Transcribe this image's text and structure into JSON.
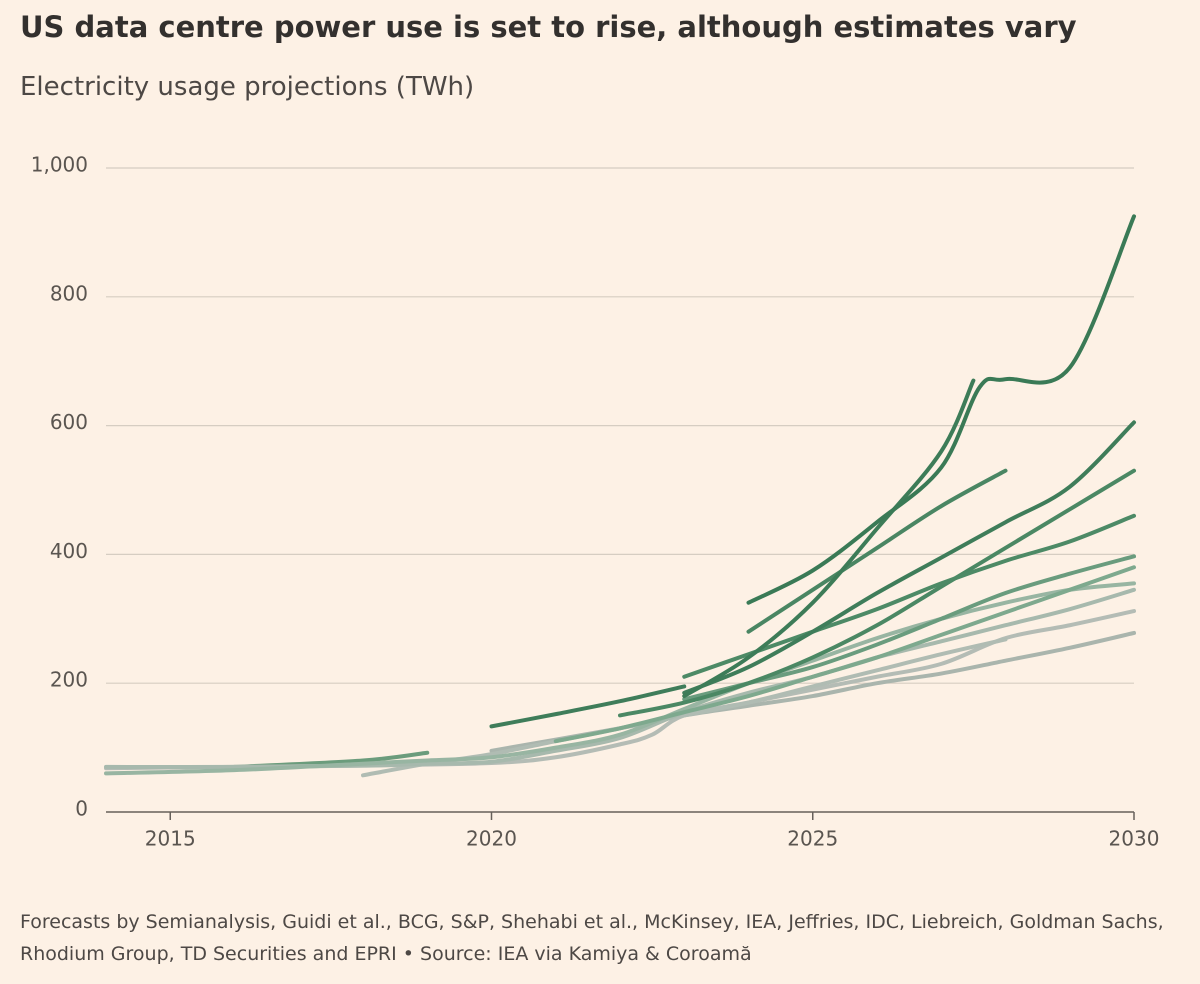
{
  "chart_data": {
    "type": "line",
    "title": "US data centre power use is set to rise, although estimates vary",
    "subtitle": "Electricity usage projections (TWh)",
    "footnote": "Forecasts by Semianalysis, Guidi et al., BCG, S&P, Shehabi et al., McKinsey, IEA, Jeffries, IDC, Liebreich, Goldman Sachs, Rhodium Group, TD Securities and EPRI • Source: IEA via Kamiya & Coroamă",
    "xlim": [
      2014,
      2030
    ],
    "xticks": [
      2015,
      2020,
      2025,
      2030
    ],
    "ylim": [
      0,
      1000
    ],
    "yticks": [
      0,
      200,
      400,
      600,
      800,
      {
        "value": 1000,
        "label": "1,000"
      }
    ],
    "grid": true,
    "series": [
      {
        "color": "#3a7a56",
        "x": [
          2024,
          2025,
          2026,
          2027,
          2027.6,
          2028,
          2029,
          2030
        ],
        "values": [
          325,
          375,
          450,
          535,
          660,
          672,
          690,
          925
        ]
      },
      {
        "color": "#3d7c58",
        "x": [
          2023,
          2024,
          2025,
          2026,
          2027,
          2027.5
        ],
        "values": [
          180,
          240,
          325,
          440,
          560,
          670
        ]
      },
      {
        "color": "#4a8663",
        "x": [
          2024,
          2025,
          2026,
          2027,
          2028
        ],
        "values": [
          280,
          345,
          410,
          475,
          530
        ]
      },
      {
        "color": "#3f7d5a",
        "x": [
          2023,
          2024,
          2025,
          2026,
          2027,
          2028,
          2029,
          2030
        ],
        "values": [
          185,
          225,
          280,
          340,
          395,
          450,
          505,
          605
        ]
      },
      {
        "color": "#4d8a66",
        "x": [
          2023,
          2024,
          2025,
          2026,
          2027,
          2028,
          2029,
          2030
        ],
        "values": [
          210,
          245,
          280,
          315,
          355,
          390,
          420,
          460
        ]
      },
      {
        "color": "#4b8864",
        "x": [
          2022,
          2023,
          2024,
          2025,
          2026,
          2027,
          2028,
          2029,
          2030
        ],
        "values": [
          150,
          170,
          200,
          240,
          290,
          350,
          410,
          470,
          530
        ]
      },
      {
        "color": "#3f7d5a",
        "x": [
          2020,
          2021,
          2022,
          2023
        ],
        "values": [
          133,
          152,
          172,
          195
        ]
      },
      {
        "color": "#6a9c7e",
        "x": [
          2023,
          2024,
          2025,
          2026,
          2027,
          2028,
          2029,
          2030
        ],
        "values": [
          175,
          200,
          225,
          260,
          300,
          340,
          370,
          397
        ]
      },
      {
        "color": "#7ea98e",
        "x": [
          2021,
          2022,
          2023,
          2024,
          2025,
          2026,
          2027,
          2028,
          2029,
          2030
        ],
        "values": [
          110,
          130,
          155,
          180,
          210,
          240,
          275,
          310,
          345,
          380
        ]
      },
      {
        "color": "#98b5a2",
        "x": [
          2014,
          2016,
          2018,
          2019,
          2020,
          2021,
          2022,
          2023,
          2024,
          2025,
          2026,
          2027,
          2028,
          2029,
          2030
        ],
        "values": [
          60,
          65,
          75,
          80,
          85,
          100,
          120,
          160,
          200,
          235,
          270,
          300,
          325,
          345,
          355
        ]
      },
      {
        "color": "#a7b9ad",
        "x": [
          2014,
          2016,
          2018,
          2019,
          2020,
          2021,
          2022,
          2023,
          2024,
          2025,
          2026,
          2027,
          2028,
          2029,
          2030
        ],
        "values": [
          70,
          70,
          72,
          75,
          78,
          95,
          115,
          155,
          185,
          210,
          240,
          265,
          290,
          315,
          345
        ]
      },
      {
        "color": "#b0bcb3",
        "x": [
          2018,
          2019,
          2020,
          2021,
          2022,
          2023,
          2024,
          2025,
          2026,
          2027,
          2028
        ],
        "values": [
          57,
          75,
          90,
          110,
          130,
          150,
          170,
          195,
          220,
          245,
          268
        ]
      },
      {
        "color": "#b4bcb5",
        "x": [
          2014,
          2016,
          2018,
          2020,
          2021,
          2022,
          2022.5,
          2023,
          2024,
          2025,
          2026,
          2027,
          2028,
          2029,
          2030
        ],
        "values": [
          68,
          70,
          72,
          76,
          85,
          105,
          120,
          150,
          170,
          190,
          210,
          230,
          270,
          290,
          312
        ]
      },
      {
        "color": "#aab5ad",
        "x": [
          2020,
          2022,
          2023,
          2024,
          2025,
          2026,
          2027,
          2028,
          2029,
          2030
        ],
        "values": [
          95,
          130,
          150,
          165,
          180,
          200,
          215,
          235,
          255,
          278
        ]
      },
      {
        "color": "#6b9c7c",
        "x": [
          2016,
          2018,
          2019
        ],
        "values": [
          70,
          80,
          92
        ]
      }
    ]
  }
}
